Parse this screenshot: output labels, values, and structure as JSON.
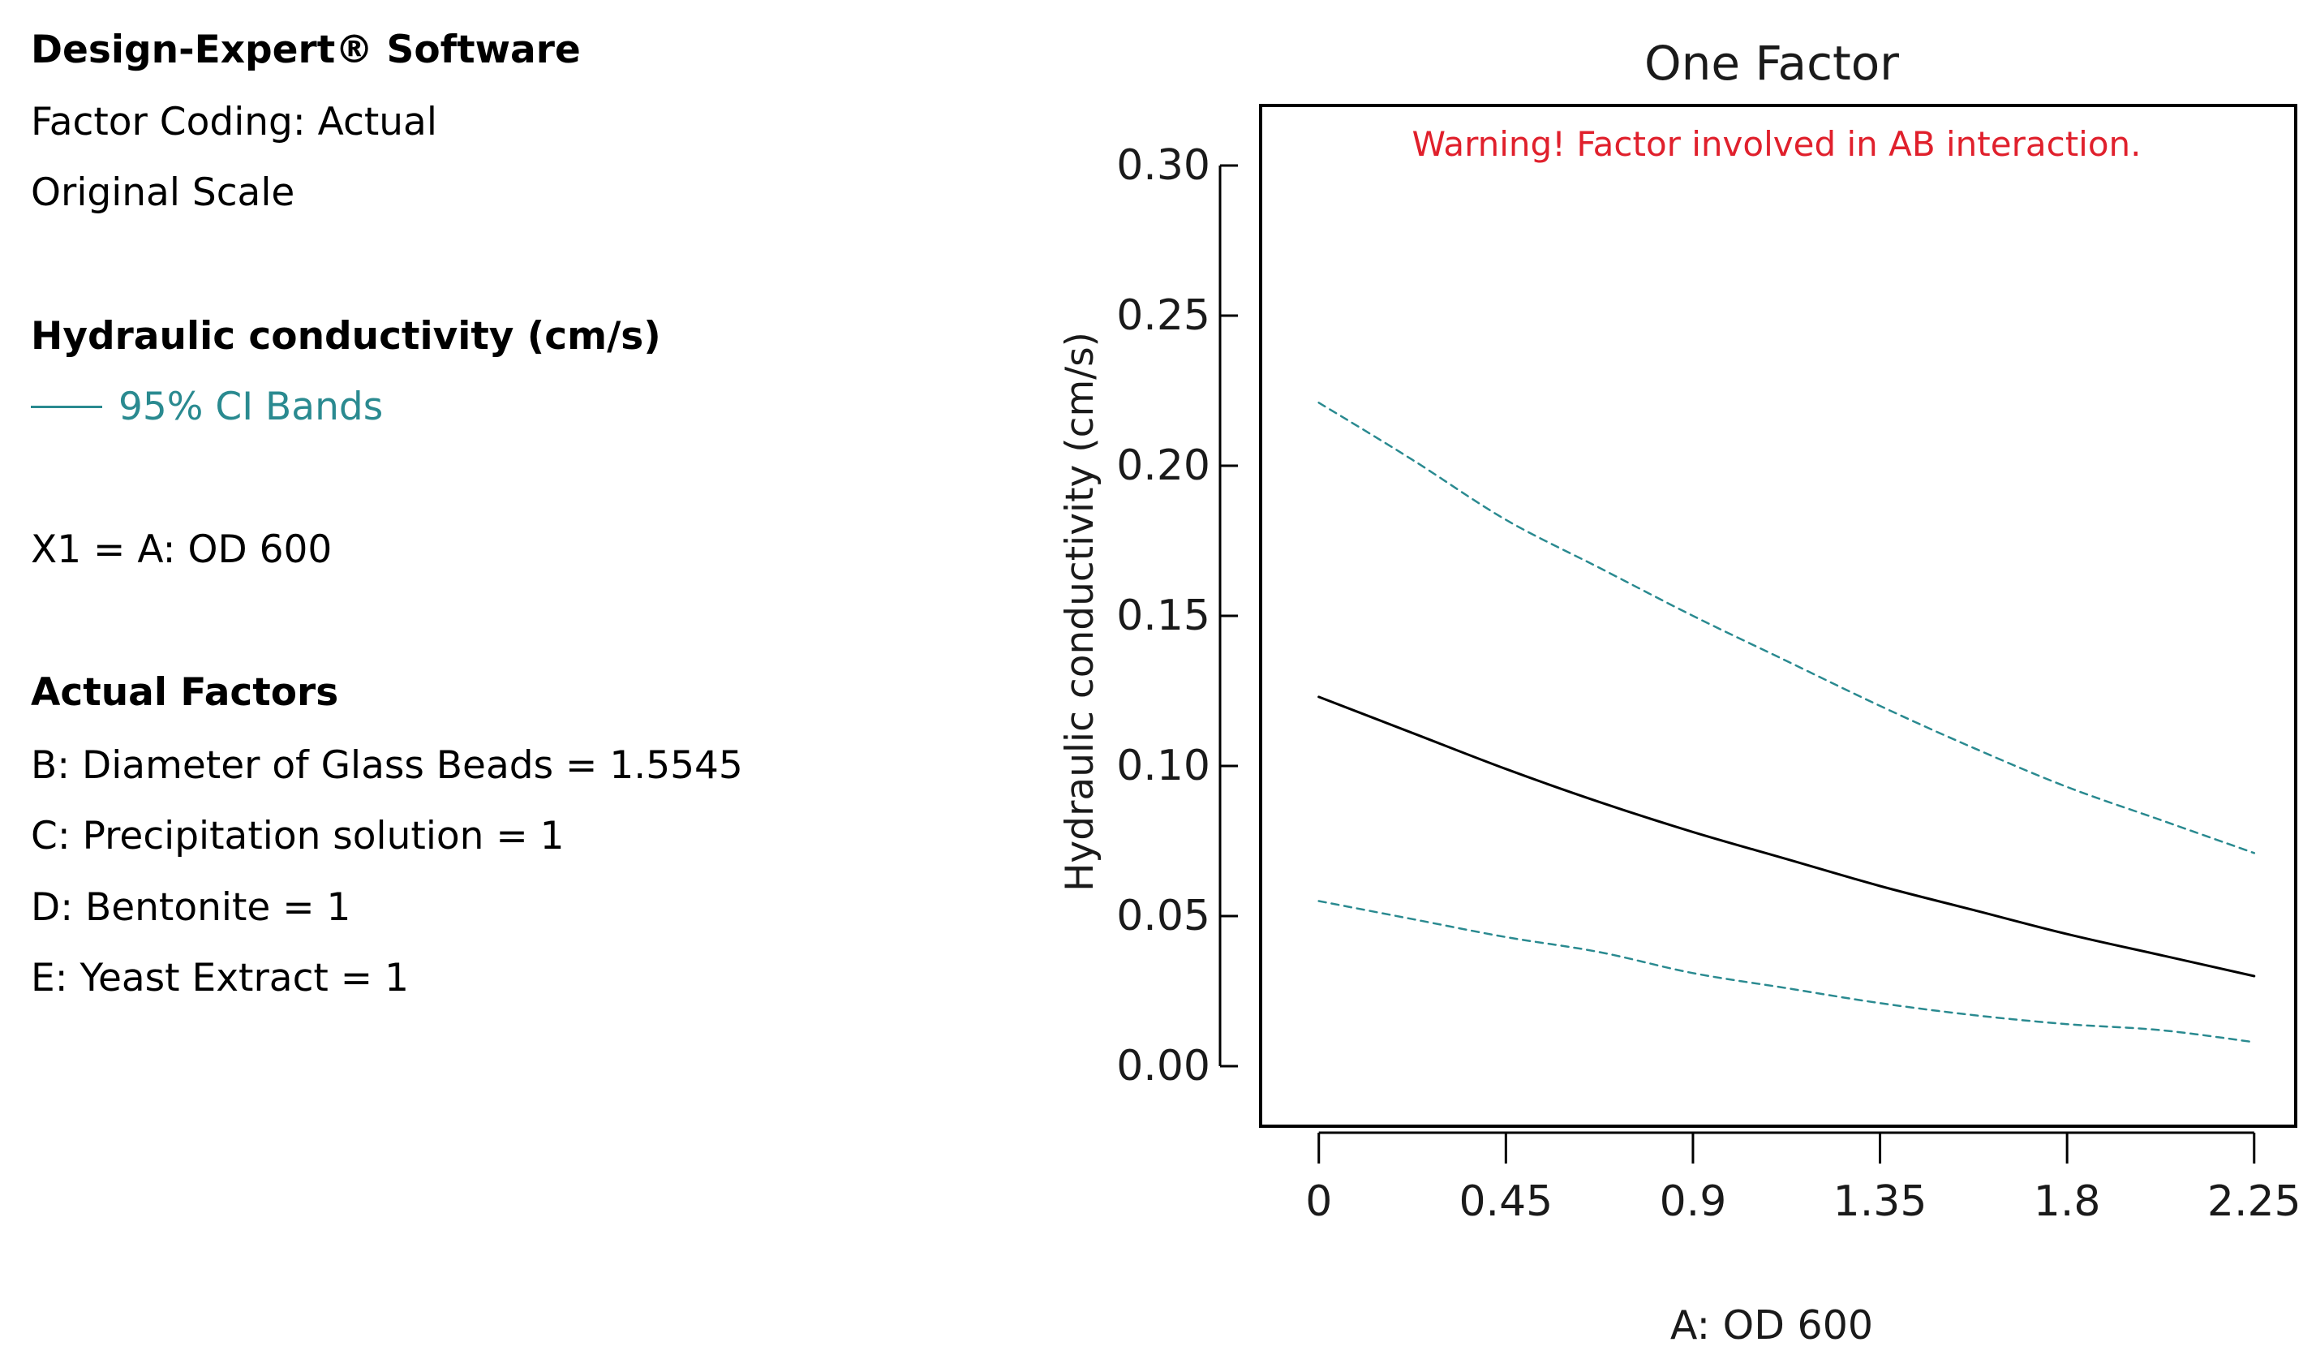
{
  "info": {
    "software": "Design-Expert® Software",
    "factor_coding": "Factor Coding: Actual",
    "scale": "Original Scale",
    "response_heading": "Hydraulic conductivity (cm/s)",
    "ci_legend": "95% CI Bands",
    "x1_label": "X1 = A: OD 600",
    "actual_factors_heading": "Actual Factors",
    "factors": [
      "B: Diameter of Glass Beads = 1.5545",
      "C: Precipitation solution = 1",
      "D: Bentonite = 1",
      "E: Yeast Extract = 1"
    ]
  },
  "colors": {
    "prediction": "#000000",
    "ci_band": "#2a8a90",
    "warning": "#e0202c"
  },
  "chart_data": {
    "type": "line",
    "title": "One Factor",
    "warning": "Warning! Factor involved in AB interaction.",
    "xlabel": "A: OD 600",
    "ylabel": "Hydraulic conductivity (cm/s)",
    "xlim": [
      -0.14,
      2.35
    ],
    "ylim": [
      -0.02,
      0.32
    ],
    "xticks": [
      0,
      0.45,
      0.9,
      1.35,
      1.8,
      2.25
    ],
    "xtick_labels": [
      "0",
      "0.45",
      "0.9",
      "1.35",
      "1.8",
      "2.25"
    ],
    "yticks": [
      0.0,
      0.05,
      0.1,
      0.15,
      0.2,
      0.25,
      0.3
    ],
    "ytick_labels": [
      "0.00",
      "0.05",
      "0.10",
      "0.15",
      "0.20",
      "0.25",
      "0.30"
    ],
    "x": [
      0,
      0.225,
      0.45,
      0.675,
      0.9,
      1.125,
      1.35,
      1.575,
      1.8,
      2.025,
      2.25
    ],
    "series": [
      {
        "name": "Prediction",
        "style": "solid",
        "values": [
          0.123,
          0.111,
          0.099,
          0.088,
          0.078,
          0.069,
          0.06,
          0.052,
          0.044,
          0.037,
          0.03
        ]
      },
      {
        "name": "95% CI upper",
        "style": "dashed",
        "values": [
          0.221,
          0.202,
          0.182,
          0.166,
          0.15,
          0.135,
          0.12,
          0.106,
          0.093,
          0.082,
          0.071
        ]
      },
      {
        "name": "95% CI lower",
        "style": "dashed",
        "values": [
          0.055,
          0.049,
          0.043,
          0.038,
          0.031,
          0.026,
          0.021,
          0.017,
          0.014,
          0.012,
          0.008
        ]
      }
    ]
  }
}
